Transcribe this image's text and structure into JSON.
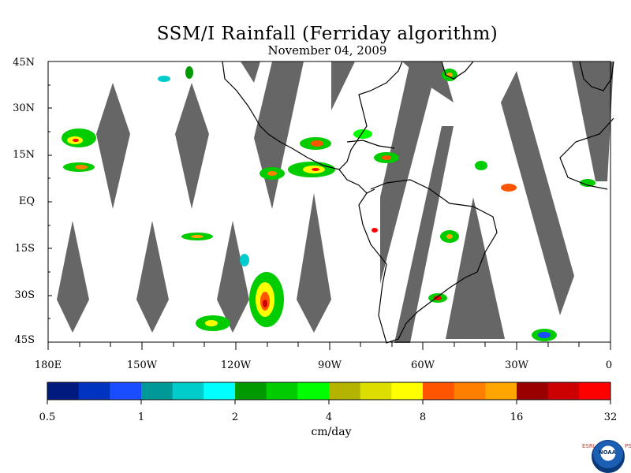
{
  "title": "SSM/I Rainfall (Ferriday algorithm)",
  "subtitle": "November 04, 2009",
  "map": {
    "lat_labels": [
      "45N",
      "30N",
      "15N",
      "EQ",
      "15S",
      "30S",
      "45S"
    ],
    "lon_labels": [
      "180E",
      "150W",
      "120W",
      "90W",
      "60W",
      "30W",
      "0"
    ],
    "lon_range": [
      -180,
      0
    ],
    "lat_range": [
      -45,
      45
    ],
    "no_data_color": "#666666",
    "land_outline_color": "#000000"
  },
  "colorbar": {
    "units": "cm/day",
    "tick_labels": [
      "0.5",
      "1",
      "2",
      "4",
      "8",
      "16",
      "32"
    ],
    "colors": [
      "#001a80",
      "#0033c0",
      "#1a4dff",
      "#009999",
      "#00cccc",
      "#00ffff",
      "#009900",
      "#00cc00",
      "#00ff00",
      "#b3b300",
      "#dddd00",
      "#ffff00",
      "#ff5500",
      "#ff8000",
      "#ffa500",
      "#990000",
      "#cc0000",
      "#ff0000"
    ]
  },
  "logo": {
    "left_letters": "ESRL",
    "right_letters": "PSD",
    "org": "NOAA"
  }
}
